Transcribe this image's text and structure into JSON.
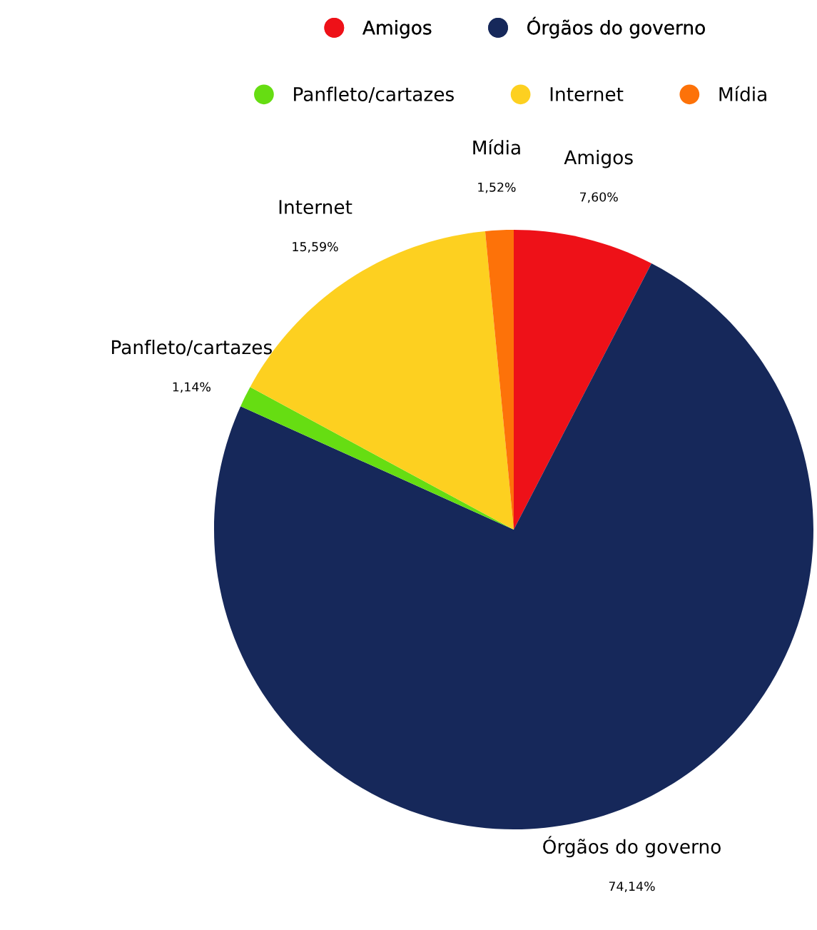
{
  "chart_data": {
    "type": "pie",
    "categories": [
      "Amigos",
      "Órgãos do governo",
      "Panfleto/cartazes",
      "Internet",
      "Mídia"
    ],
    "values": [
      7.6,
      74.14,
      1.14,
      15.59,
      1.52
    ],
    "value_labels": [
      "7,60%",
      "74,14%",
      "1,14%",
      "15,59%",
      "1,52%"
    ],
    "colors": [
      "#ee1118",
      "#16285a",
      "#66dd12",
      "#fdd020",
      "#fd7209"
    ],
    "legend": "top"
  }
}
